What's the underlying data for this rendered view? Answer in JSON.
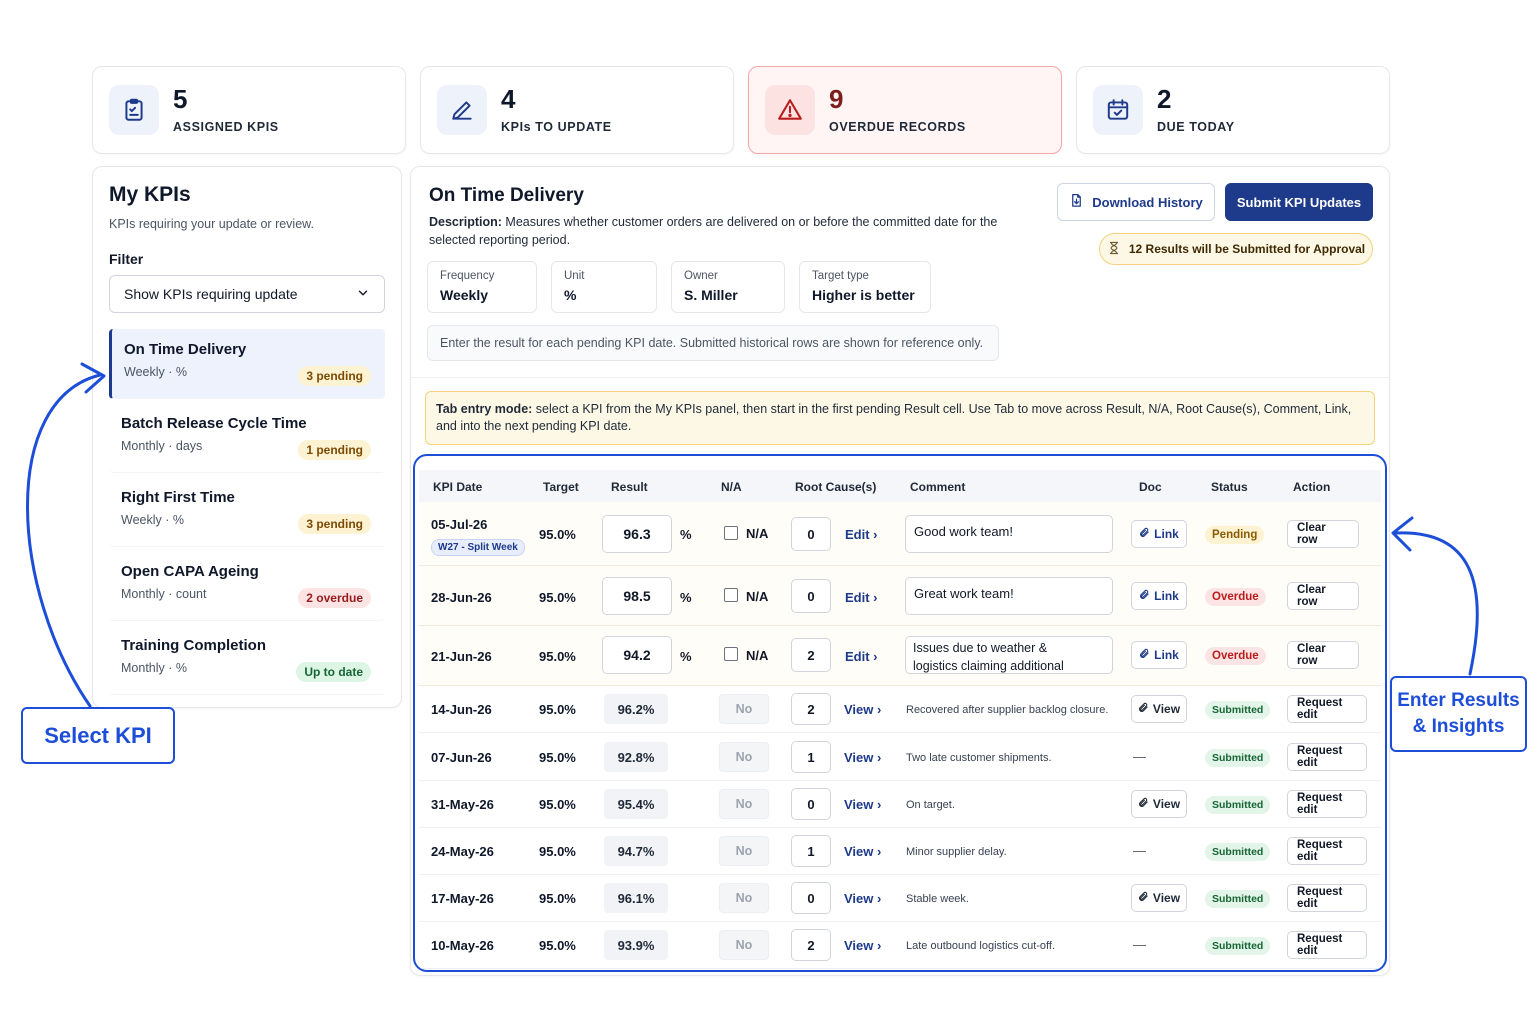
{
  "stats": [
    {
      "value": "5",
      "label": "ASSIGNED KPIS",
      "icon": "clipboard-icon"
    },
    {
      "value": "4",
      "label": "KPIs TO UPDATE",
      "icon": "pencil-icon"
    },
    {
      "value": "9",
      "label": "OVERDUE RECORDS",
      "icon": "warning-icon"
    },
    {
      "value": "2",
      "label": "DUE TODAY",
      "icon": "calendar-check-icon"
    }
  ],
  "sidebar": {
    "title": "My KPIs",
    "subtitle": "KPIs requiring your update or review.",
    "filter_label": "Filter",
    "filter_value": "Show KPIs requiring update",
    "items": [
      {
        "name": "On Time Delivery",
        "meta": "Weekly · %",
        "badge": "3 pending",
        "badge_type": "pending"
      },
      {
        "name": "Batch Release Cycle Time",
        "meta": "Monthly · days",
        "badge": "1 pending",
        "badge_type": "pending"
      },
      {
        "name": "Right First Time",
        "meta": "Weekly · %",
        "badge": "3 pending",
        "badge_type": "pending"
      },
      {
        "name": "Open CAPA Ageing",
        "meta": "Monthly · count",
        "badge": "2 overdue",
        "badge_type": "overdue"
      },
      {
        "name": "Training Completion",
        "meta": "Monthly · %",
        "badge": "Up to date",
        "badge_type": "ok"
      }
    ]
  },
  "main": {
    "title": "On Time Delivery",
    "description_label": "Description:",
    "description": " Measures whether customer orders are delivered on or before the committed date for the selected reporting period.",
    "download_label": "Download History",
    "submit_label": "Submit KPI Updates",
    "approval_note": "12 Results will be Submitted for Approval",
    "meta": [
      {
        "key": "Frequency",
        "value": "Weekly"
      },
      {
        "key": "Unit",
        "value": "%"
      },
      {
        "key": "Owner",
        "value": "S. Miller"
      },
      {
        "key": "Target type",
        "value": "Higher is better"
      }
    ],
    "hint": "Enter the result for each pending KPI date. Submitted historical rows are shown for reference only.",
    "tab_note_label": "Tab entry mode:",
    "tab_note": " select a KPI from the My KPIs panel, then start in the first pending Result cell. Use Tab to move across Result, N/A, Root Cause(s), Comment, Link, and into the next pending KPI date."
  },
  "table": {
    "headers": {
      "date": "KPI Date",
      "target": "Target",
      "result": "Result",
      "na": "N/A",
      "root": "Root Cause(s)",
      "comment": "Comment",
      "doc": "Doc",
      "status": "Status",
      "action": "Action"
    },
    "pending_rows": [
      {
        "date": "05-Jul-26",
        "week": "W27 - Split Week",
        "target": "95.0%",
        "result": "96.3",
        "unit": "%",
        "na": "N/A",
        "root": "0",
        "root_link": "Edit ›",
        "comment": "Good work team!",
        "doc": "Link",
        "status": "Pending",
        "status_type": "pending",
        "action": "Clear row"
      },
      {
        "date": "28-Jun-26",
        "week": "",
        "target": "95.0%",
        "result": "98.5",
        "unit": "%",
        "na": "N/A",
        "root": "0",
        "root_link": "Edit ›",
        "comment": "Great work team!",
        "doc": "Link",
        "status": "Overdue",
        "status_type": "overdue",
        "action": "Clear row"
      },
      {
        "date": "21-Jun-26",
        "week": "",
        "target": "95.0%",
        "result": "94.2",
        "unit": "%",
        "na": "N/A",
        "root": "2",
        "root_link": "Edit ›",
        "comment": "Issues due to weather & logistics claiming additional time in the",
        "doc": "Link",
        "status": "Overdue",
        "status_type": "overdue",
        "action": "Clear row"
      }
    ],
    "history_rows": [
      {
        "date": "14-Jun-26",
        "target": "95.0%",
        "result": "96.2%",
        "na": "No",
        "root": "2",
        "root_link": "View ›",
        "comment": "Recovered after supplier backlog closure.",
        "doc": "View",
        "status": "Submitted",
        "action": "Request edit"
      },
      {
        "date": "07-Jun-26",
        "target": "95.0%",
        "result": "92.8%",
        "na": "No",
        "root": "1",
        "root_link": "View ›",
        "comment": "Two late customer shipments.",
        "doc": "—",
        "status": "Submitted",
        "action": "Request edit"
      },
      {
        "date": "31-May-26",
        "target": "95.0%",
        "result": "95.4%",
        "na": "No",
        "root": "0",
        "root_link": "View ›",
        "comment": "On target.",
        "doc": "View",
        "status": "Submitted",
        "action": "Request edit"
      },
      {
        "date": "24-May-26",
        "target": "95.0%",
        "result": "94.7%",
        "na": "No",
        "root": "1",
        "root_link": "View ›",
        "comment": "Minor supplier delay.",
        "doc": "—",
        "status": "Submitted",
        "action": "Request edit"
      },
      {
        "date": "17-May-26",
        "target": "95.0%",
        "result": "96.1%",
        "na": "No",
        "root": "0",
        "root_link": "View ›",
        "comment": "Stable week.",
        "doc": "View",
        "status": "Submitted",
        "action": "Request edit"
      },
      {
        "date": "10-May-26",
        "target": "95.0%",
        "result": "93.9%",
        "na": "No",
        "root": "2",
        "root_link": "View ›",
        "comment": "Late outbound logistics cut-off.",
        "doc": "—",
        "status": "Submitted",
        "action": "Request edit"
      }
    ]
  },
  "callouts": {
    "select": "Select KPI",
    "enter_line1": "Enter Results",
    "enter_line2": "& Insights"
  },
  "colors": {
    "accent": "#1e3a8a",
    "annotation": "#1d4ed8",
    "pending": "#fdf3d2",
    "overdue": "#fde4e4",
    "submitted": "#e3f5e8"
  }
}
